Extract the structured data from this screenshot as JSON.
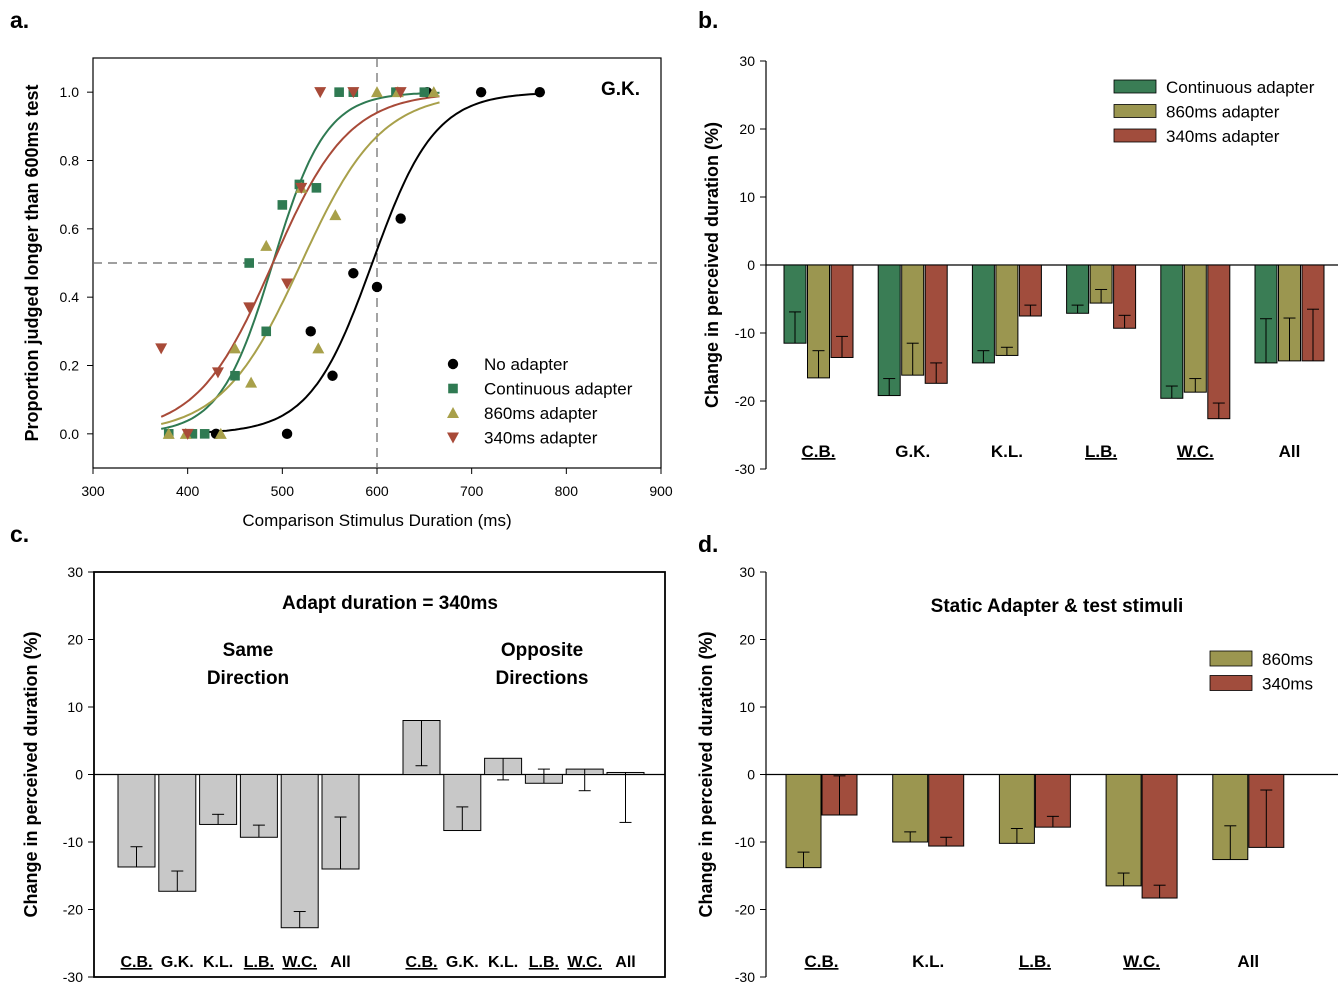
{
  "chart_data": [
    {
      "id": "a",
      "panel_label": "a.",
      "type": "scatter",
      "xlabel": "Comparison Stimulus Duration (ms)",
      "ylabel": "Proportion judged longer than 600ms test",
      "xlim": [
        300,
        900
      ],
      "ylim": [
        -0.1,
        1.1
      ],
      "xticks": [
        "300",
        "400",
        "500",
        "600",
        "700",
        "800",
        "900"
      ],
      "yticks": [
        "0.0",
        "0.2",
        "0.4",
        "0.6",
        "0.8",
        "1.0"
      ],
      "annotation": "G.K.",
      "reference_lines": {
        "x": 600,
        "y": 0.5
      },
      "legend_position": "bottom-right",
      "series": [
        {
          "name": "No adapter",
          "marker": "circle",
          "color": "#000000",
          "points": [
            [
              430,
              0.0
            ],
            [
              505,
              0.0
            ],
            [
              530,
              0.3
            ],
            [
              553,
              0.17
            ],
            [
              575,
              0.47
            ],
            [
              600,
              0.43
            ],
            [
              625,
              0.63
            ],
            [
              653,
              1.0
            ],
            [
              710,
              1.0
            ],
            [
              772,
              1.0
            ]
          ],
          "fit": {
            "mu": 595,
            "sigma": 33
          }
        },
        {
          "name": "Continuous adapter",
          "marker": "square",
          "color": "#2f7a52",
          "points": [
            [
              380,
              0.0
            ],
            [
              405,
              0.0
            ],
            [
              418,
              0.0
            ],
            [
              450,
              0.17
            ],
            [
              465,
              0.5
            ],
            [
              483,
              0.3
            ],
            [
              500,
              0.67
            ],
            [
              518,
              0.73
            ],
            [
              536,
              0.72
            ],
            [
              560,
              1.0
            ],
            [
              575,
              1.0
            ],
            [
              620,
              1.0
            ],
            [
              650,
              1.0
            ]
          ],
          "fit": {
            "mu": 490,
            "sigma": 28
          }
        },
        {
          "name": "860ms adapter",
          "marker": "triangle-up",
          "color": "#a8a04a",
          "points": [
            [
              380,
              0.0
            ],
            [
              398,
              0.0
            ],
            [
              435,
              0.0
            ],
            [
              450,
              0.25
            ],
            [
              467,
              0.15
            ],
            [
              483,
              0.55
            ],
            [
              520,
              0.72
            ],
            [
              538,
              0.25
            ],
            [
              556,
              0.64
            ],
            [
              600,
              1.0
            ],
            [
              622,
              1.0
            ],
            [
              660,
              1.0
            ]
          ],
          "fit": {
            "mu": 520,
            "sigma": 42
          }
        },
        {
          "name": "340ms adapter",
          "marker": "triangle-down",
          "color": "#a84a38",
          "points": [
            [
              372,
              0.25
            ],
            [
              400,
              0.0
            ],
            [
              432,
              0.18
            ],
            [
              465,
              0.37
            ],
            [
              505,
              0.44
            ],
            [
              520,
              0.72
            ],
            [
              540,
              1.0
            ],
            [
              575,
              1.0
            ],
            [
              625,
              1.0
            ]
          ],
          "fit": {
            "mu": 490,
            "sigma": 40
          }
        }
      ]
    },
    {
      "id": "b",
      "panel_label": "b.",
      "type": "bar",
      "ylabel": "Change in perceived duration (%)",
      "ylim": [
        -30,
        30
      ],
      "yticks": [
        "30",
        "20",
        "10",
        "0",
        "-10",
        "-20",
        "-30"
      ],
      "legend_position": "top-right",
      "categories": [
        "C.B.",
        "G.K.",
        "K.L.",
        "L.B.",
        "W.C.",
        "All"
      ],
      "underlined": [
        true,
        false,
        false,
        true,
        true,
        false
      ],
      "series": [
        {
          "name": "Continuous adapter",
          "color": "#3a7d55",
          "values": [
            -11.5,
            -19.2,
            -14.4,
            -7.1,
            -19.6,
            -14.4
          ],
          "errors": [
            4.6,
            2.5,
            1.8,
            1.2,
            1.8,
            6.5
          ]
        },
        {
          "name": "860ms adapter",
          "color": "#9b9650",
          "values": [
            -16.6,
            -16.2,
            -13.3,
            -5.6,
            -18.7,
            -14.1
          ],
          "errors": [
            4.0,
            4.7,
            1.2,
            2.0,
            2.0,
            6.3
          ]
        },
        {
          "name": "340ms adapter",
          "color": "#a14d3d",
          "values": [
            -13.6,
            -17.4,
            -7.5,
            -9.3,
            -22.6,
            -14.1
          ],
          "errors": [
            3.1,
            3.0,
            1.6,
            1.9,
            2.3,
            7.6
          ]
        }
      ]
    },
    {
      "id": "c",
      "panel_label": "c.",
      "type": "bar",
      "title": "Adapt duration = 340ms",
      "ylabel": "Change in perceived duration (%)",
      "ylim": [
        -30,
        30
      ],
      "yticks": [
        "30",
        "20",
        "10",
        "0",
        "-10",
        "-20",
        "-30"
      ],
      "group_labels": [
        [
          "Same",
          "Direction"
        ],
        [
          "Opposite",
          "Directions"
        ]
      ],
      "color": "#c8c8c8",
      "groups": [
        {
          "categories": [
            "C.B.",
            "G.K.",
            "K.L.",
            "L.B.",
            "W.C.",
            "All"
          ],
          "underlined": [
            true,
            false,
            false,
            true,
            true,
            false
          ],
          "values": [
            -13.7,
            -17.3,
            -7.4,
            -9.3,
            -22.7,
            -14.0
          ],
          "errors": [
            3.0,
            3.0,
            1.5,
            1.8,
            2.4,
            7.7
          ]
        },
        {
          "categories": [
            "C.B.",
            "G.K.",
            "K.L.",
            "L.B.",
            "W.C.",
            "All"
          ],
          "underlined": [
            true,
            false,
            false,
            true,
            true,
            false
          ],
          "values": [
            8.0,
            -8.3,
            2.4,
            -1.3,
            0.8,
            0.3
          ],
          "errors": [
            6.7,
            3.5,
            3.2,
            2.1,
            3.2,
            7.4
          ]
        }
      ]
    },
    {
      "id": "d",
      "panel_label": "d.",
      "type": "bar",
      "title": "Static Adapter & test stimuli",
      "ylabel": "Change in perceived duration (%)",
      "ylim": [
        -30,
        30
      ],
      "yticks": [
        "30",
        "20",
        "10",
        "0",
        "-10",
        "-20",
        "-30"
      ],
      "legend_position": "top-right",
      "categories": [
        "C.B.",
        "K.L.",
        "L.B.",
        "W.C.",
        "All"
      ],
      "underlined": [
        true,
        false,
        true,
        true,
        false
      ],
      "series": [
        {
          "name": "860ms",
          "color": "#9b9650",
          "values": [
            -13.8,
            -10.0,
            -10.2,
            -16.5,
            -12.6
          ],
          "errors": [
            2.3,
            1.5,
            2.2,
            1.9,
            5.0
          ]
        },
        {
          "name": "340ms",
          "color": "#a14d3d",
          "values": [
            -6.0,
            -10.6,
            -7.8,
            -18.3,
            -10.8
          ],
          "errors": [
            5.8,
            1.3,
            1.6,
            1.9,
            8.5
          ]
        }
      ]
    }
  ]
}
